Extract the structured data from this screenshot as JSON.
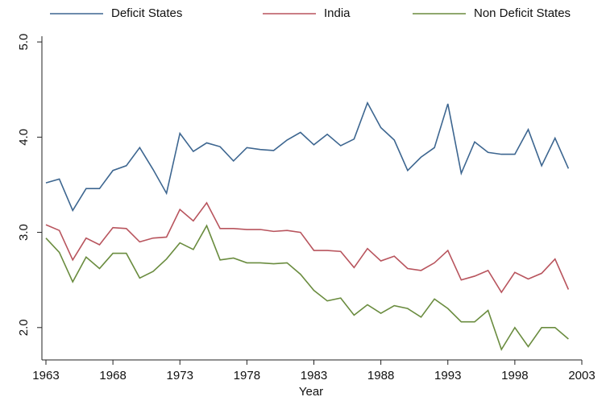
{
  "chart_data": {
    "type": "line",
    "x_label": "Year",
    "x": [
      1963,
      1964,
      1965,
      1966,
      1967,
      1968,
      1969,
      1970,
      1971,
      1972,
      1973,
      1974,
      1975,
      1976,
      1977,
      1978,
      1979,
      1980,
      1981,
      1982,
      1983,
      1984,
      1985,
      1986,
      1987,
      1988,
      1989,
      1990,
      1991,
      1992,
      1993,
      1994,
      1995,
      1996,
      1997,
      1998,
      1999,
      2000,
      2001,
      2002
    ],
    "series": [
      {
        "name": "Deficit States",
        "color": "#3d6690",
        "values": [
          3.52,
          3.56,
          3.23,
          3.46,
          3.46,
          3.65,
          3.7,
          3.89,
          3.66,
          3.41,
          4.04,
          3.85,
          3.94,
          3.9,
          3.75,
          3.89,
          3.87,
          3.86,
          3.97,
          4.05,
          3.92,
          4.03,
          3.91,
          3.98,
          4.36,
          4.1,
          3.97,
          3.65,
          3.79,
          3.89,
          4.35,
          3.62,
          3.95,
          3.84,
          3.82,
          3.82,
          4.08,
          3.7,
          3.99,
          3.67
        ]
      },
      {
        "name": "India",
        "color": "#b8545d",
        "values": [
          3.08,
          3.02,
          2.71,
          2.94,
          2.87,
          3.05,
          3.04,
          2.9,
          2.94,
          2.95,
          3.24,
          3.12,
          3.31,
          3.04,
          3.04,
          3.03,
          3.03,
          3.01,
          3.02,
          3.0,
          2.81,
          2.81,
          2.8,
          2.63,
          2.83,
          2.7,
          2.75,
          2.62,
          2.6,
          2.68,
          2.81,
          2.5,
          2.54,
          2.6,
          2.37,
          2.58,
          2.51,
          2.57,
          2.72,
          2.4
        ]
      },
      {
        "name": "Non Deficit States",
        "color": "#6a8c3f",
        "values": [
          2.94,
          2.79,
          2.48,
          2.74,
          2.62,
          2.78,
          2.78,
          2.52,
          2.59,
          2.72,
          2.89,
          2.82,
          3.07,
          2.71,
          2.73,
          2.68,
          2.68,
          2.67,
          2.68,
          2.56,
          2.39,
          2.28,
          2.31,
          2.13,
          2.24,
          2.15,
          2.23,
          2.2,
          2.11,
          2.3,
          2.2,
          2.06,
          2.06,
          2.18,
          1.77,
          2.0,
          1.8,
          2.0,
          2.0,
          1.88
        ]
      }
    ],
    "xlim": [
      1962.7,
      2003
    ],
    "xticks": [
      1963,
      1968,
      1973,
      1978,
      1983,
      1988,
      1993,
      1998,
      2003
    ],
    "ylim": [
      1.66,
      5.06
    ],
    "yticks": [
      {
        "value": 2,
        "label": "2.0"
      },
      {
        "value": 3,
        "label": "3.0"
      },
      {
        "value": 4,
        "label": "4.0"
      },
      {
        "value": 5,
        "label": "5.0"
      }
    ],
    "legend": "top"
  }
}
